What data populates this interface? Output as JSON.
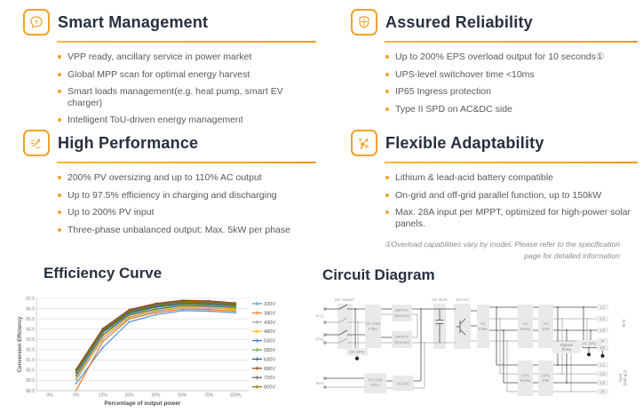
{
  "sections": [
    {
      "id": "smart-management",
      "title": "Smart Management",
      "icon": "chat-bolt-icon",
      "bullets": [
        "VPP ready, ancillary service in power market",
        "Global MPP scan for optimal energy harvest",
        "Smart loads management(e.g. heat pump, smart EV charger)",
        "Intelligent ToU-driven energy management"
      ]
    },
    {
      "id": "assured-reliability",
      "title": "Assured Reliability",
      "icon": "shield-icon",
      "bullets": [
        "Up to 200% EPS overload output for 10 seconds①",
        "UPS-level switchover time <10ms",
        "IP65 Ingress protection",
        "Type II SPD on AC&DC side"
      ]
    },
    {
      "id": "high-performance",
      "title": "High Performance",
      "icon": "speed-arrow-icon",
      "bullets": [
        "200% PV oversizing and up to 110% AC output",
        "Up to 97.5% efficiency in charging and discharging",
        "Up to 200% PV input",
        "Three-phase unbalanced output: Max. 5kW per phase"
      ]
    },
    {
      "id": "flexible-adaptability",
      "title": "Flexible Adaptability",
      "icon": "network-icon",
      "bullets": [
        "Lithium & lead-acid battery compatible",
        "On-grid and off-grid parallel function, up to 150kW",
        "Max. 28A input per MPPT, optimized for high-power solar panels."
      ]
    }
  ],
  "footnote": "①Overload capabilities vary by model. Please refer to the specification page for detailed information",
  "accent_color": "#F0A22C",
  "title_color": "#26303f",
  "body_text_color": "#595959",
  "chart_data": {
    "type": "line",
    "title": "Efficiency Curve",
    "xlabel": "Percentage of output power",
    "ylabel": "Conversion Efficiency",
    "categories": [
      "0%",
      "5%",
      "10%",
      "20%",
      "30%",
      "50%",
      "75%",
      "100%"
    ],
    "ylim": [
      88.5,
      97.5
    ],
    "yticks": [
      88.5,
      89.5,
      90.5,
      91.5,
      92.5,
      93.5,
      94.5,
      95.5,
      96.5,
      97.5
    ],
    "grid": true,
    "legend_position": "right",
    "series": [
      {
        "name": "330V",
        "color": "#5B9BD5",
        "values": [
          null,
          89.2,
          92.7,
          95.2,
          95.9,
          96.3,
          96.25,
          96.1
        ]
      },
      {
        "name": "380V",
        "color": "#ED7D31",
        "values": [
          null,
          88.55,
          93.3,
          95.5,
          96.1,
          96.45,
          96.4,
          96.25
        ]
      },
      {
        "name": "430V",
        "color": "#A5A5A5",
        "values": [
          null,
          89.55,
          93.6,
          95.65,
          96.25,
          96.6,
          96.55,
          96.4
        ]
      },
      {
        "name": "480V",
        "color": "#FFC000",
        "values": [
          null,
          89.75,
          93.8,
          95.8,
          96.35,
          96.7,
          96.65,
          96.5
        ]
      },
      {
        "name": "530V",
        "color": "#4472C4",
        "values": [
          null,
          89.95,
          93.95,
          95.9,
          96.45,
          96.8,
          96.75,
          96.6
        ]
      },
      {
        "name": "580V",
        "color": "#70AD47",
        "values": [
          null,
          90.2,
          94.15,
          96.0,
          96.6,
          96.9,
          96.85,
          96.7
        ]
      },
      {
        "name": "630V",
        "color": "#255E91",
        "values": [
          null,
          90.3,
          94.25,
          96.1,
          96.7,
          97.0,
          96.95,
          96.8
        ]
      },
      {
        "name": "680V",
        "color": "#9E480E",
        "values": [
          null,
          90.6,
          94.55,
          96.4,
          97.0,
          97.3,
          97.25,
          97.05
        ]
      },
      {
        "name": "720V",
        "color": "#636363",
        "values": [
          null,
          90.5,
          94.45,
          96.3,
          96.9,
          97.2,
          97.15,
          96.95
        ]
      },
      {
        "name": "800V",
        "color": "#997300",
        "values": [
          null,
          90.4,
          94.35,
          96.2,
          96.8,
          97.1,
          97.05,
          96.9
        ]
      }
    ]
  },
  "circuit": {
    "title": "Circuit Diagram",
    "labels": {
      "dc_switch": "DC Switch",
      "dc_bus": "DC BUS",
      "dc_ac": "DC/AC",
      "dc_emi_line1": "DC EMI",
      "dc_emi_line2": "Filter",
      "mppt1_line1": "MPPT1",
      "mppt1_line2": "(Boost1)",
      "mppt2_line1": "MPPT2",
      "mppt2_line2": "(Boost2)",
      "dc_spd": "DC SPD",
      "ac_filter_line1": "AC",
      "ac_filter_line2": "Filter",
      "ac_relay_line1": "AC",
      "ac_relay_line2": "Relay",
      "ac_emi_line1": "AC",
      "ac_emi_line2": "EMI",
      "bypass_line1": "Bypass",
      "bypass_line2": "Relay",
      "ac_spd": "AC SPD",
      "eps_relay_line1": "EPS",
      "eps_relay_line2": "Relay",
      "eps_emi_line1": "EPS",
      "eps_emi_line2": "EMI",
      "dc_dc": "DC/DC",
      "pv1": "PV1",
      "pv2": "PV2",
      "bat": "BAT",
      "grid": "Grid",
      "eps_line1": "EPS",
      "eps_line2": "(Off grid)"
    },
    "grid_terminals": [
      "L1",
      "L2",
      "L3",
      "N",
      "PE"
    ],
    "eps_terminals": [
      "L1",
      "L2",
      "L3",
      "N"
    ]
  }
}
